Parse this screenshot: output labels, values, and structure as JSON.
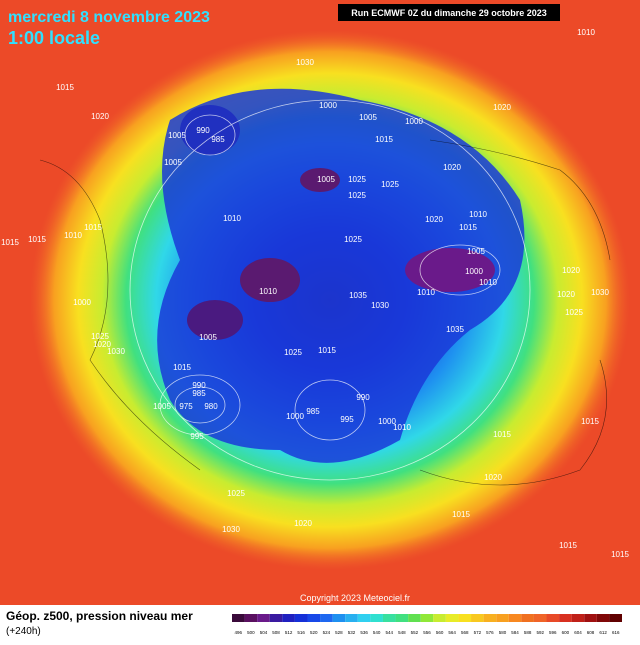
{
  "header": {
    "date": "mercredi 8 novembre 2023",
    "time": "1:00 locale",
    "run": "Run ECMWF 0Z du dimanche 29 octobre 2023"
  },
  "copyright": "Copyright 2023 Meteociel.fr",
  "footer": {
    "title": "Géop. z500, pression niveau mer",
    "lead": "(+240h)"
  },
  "colorbar": {
    "labels": [
      496,
      500,
      504,
      508,
      512,
      516,
      520,
      524,
      528,
      532,
      536,
      540,
      544,
      548,
      552,
      556,
      560,
      564,
      568,
      572,
      576,
      580,
      584,
      588,
      592,
      596,
      600,
      604,
      608,
      612,
      616
    ]
  },
  "isobar_labels": [
    1030,
    1015,
    1020,
    990,
    985,
    1005,
    1005,
    1000,
    1005,
    1000,
    1015,
    1020,
    1005,
    1025,
    1025,
    1025,
    1020,
    1010,
    1020,
    1015,
    1005,
    1000,
    1010,
    1010,
    1010,
    1010,
    1025,
    1035,
    1030,
    1035,
    1005,
    1025,
    1015,
    1015,
    990,
    985,
    975,
    980,
    1005,
    995,
    1000,
    985,
    990,
    995,
    1000,
    1010,
    1015,
    1020,
    1025,
    1030,
    1020,
    1015,
    1015,
    1015,
    1015,
    1015,
    1010,
    1015,
    1000,
    1025,
    1030,
    1020,
    1020,
    1020,
    1030,
    1025,
    1015,
    1010
  ]
}
